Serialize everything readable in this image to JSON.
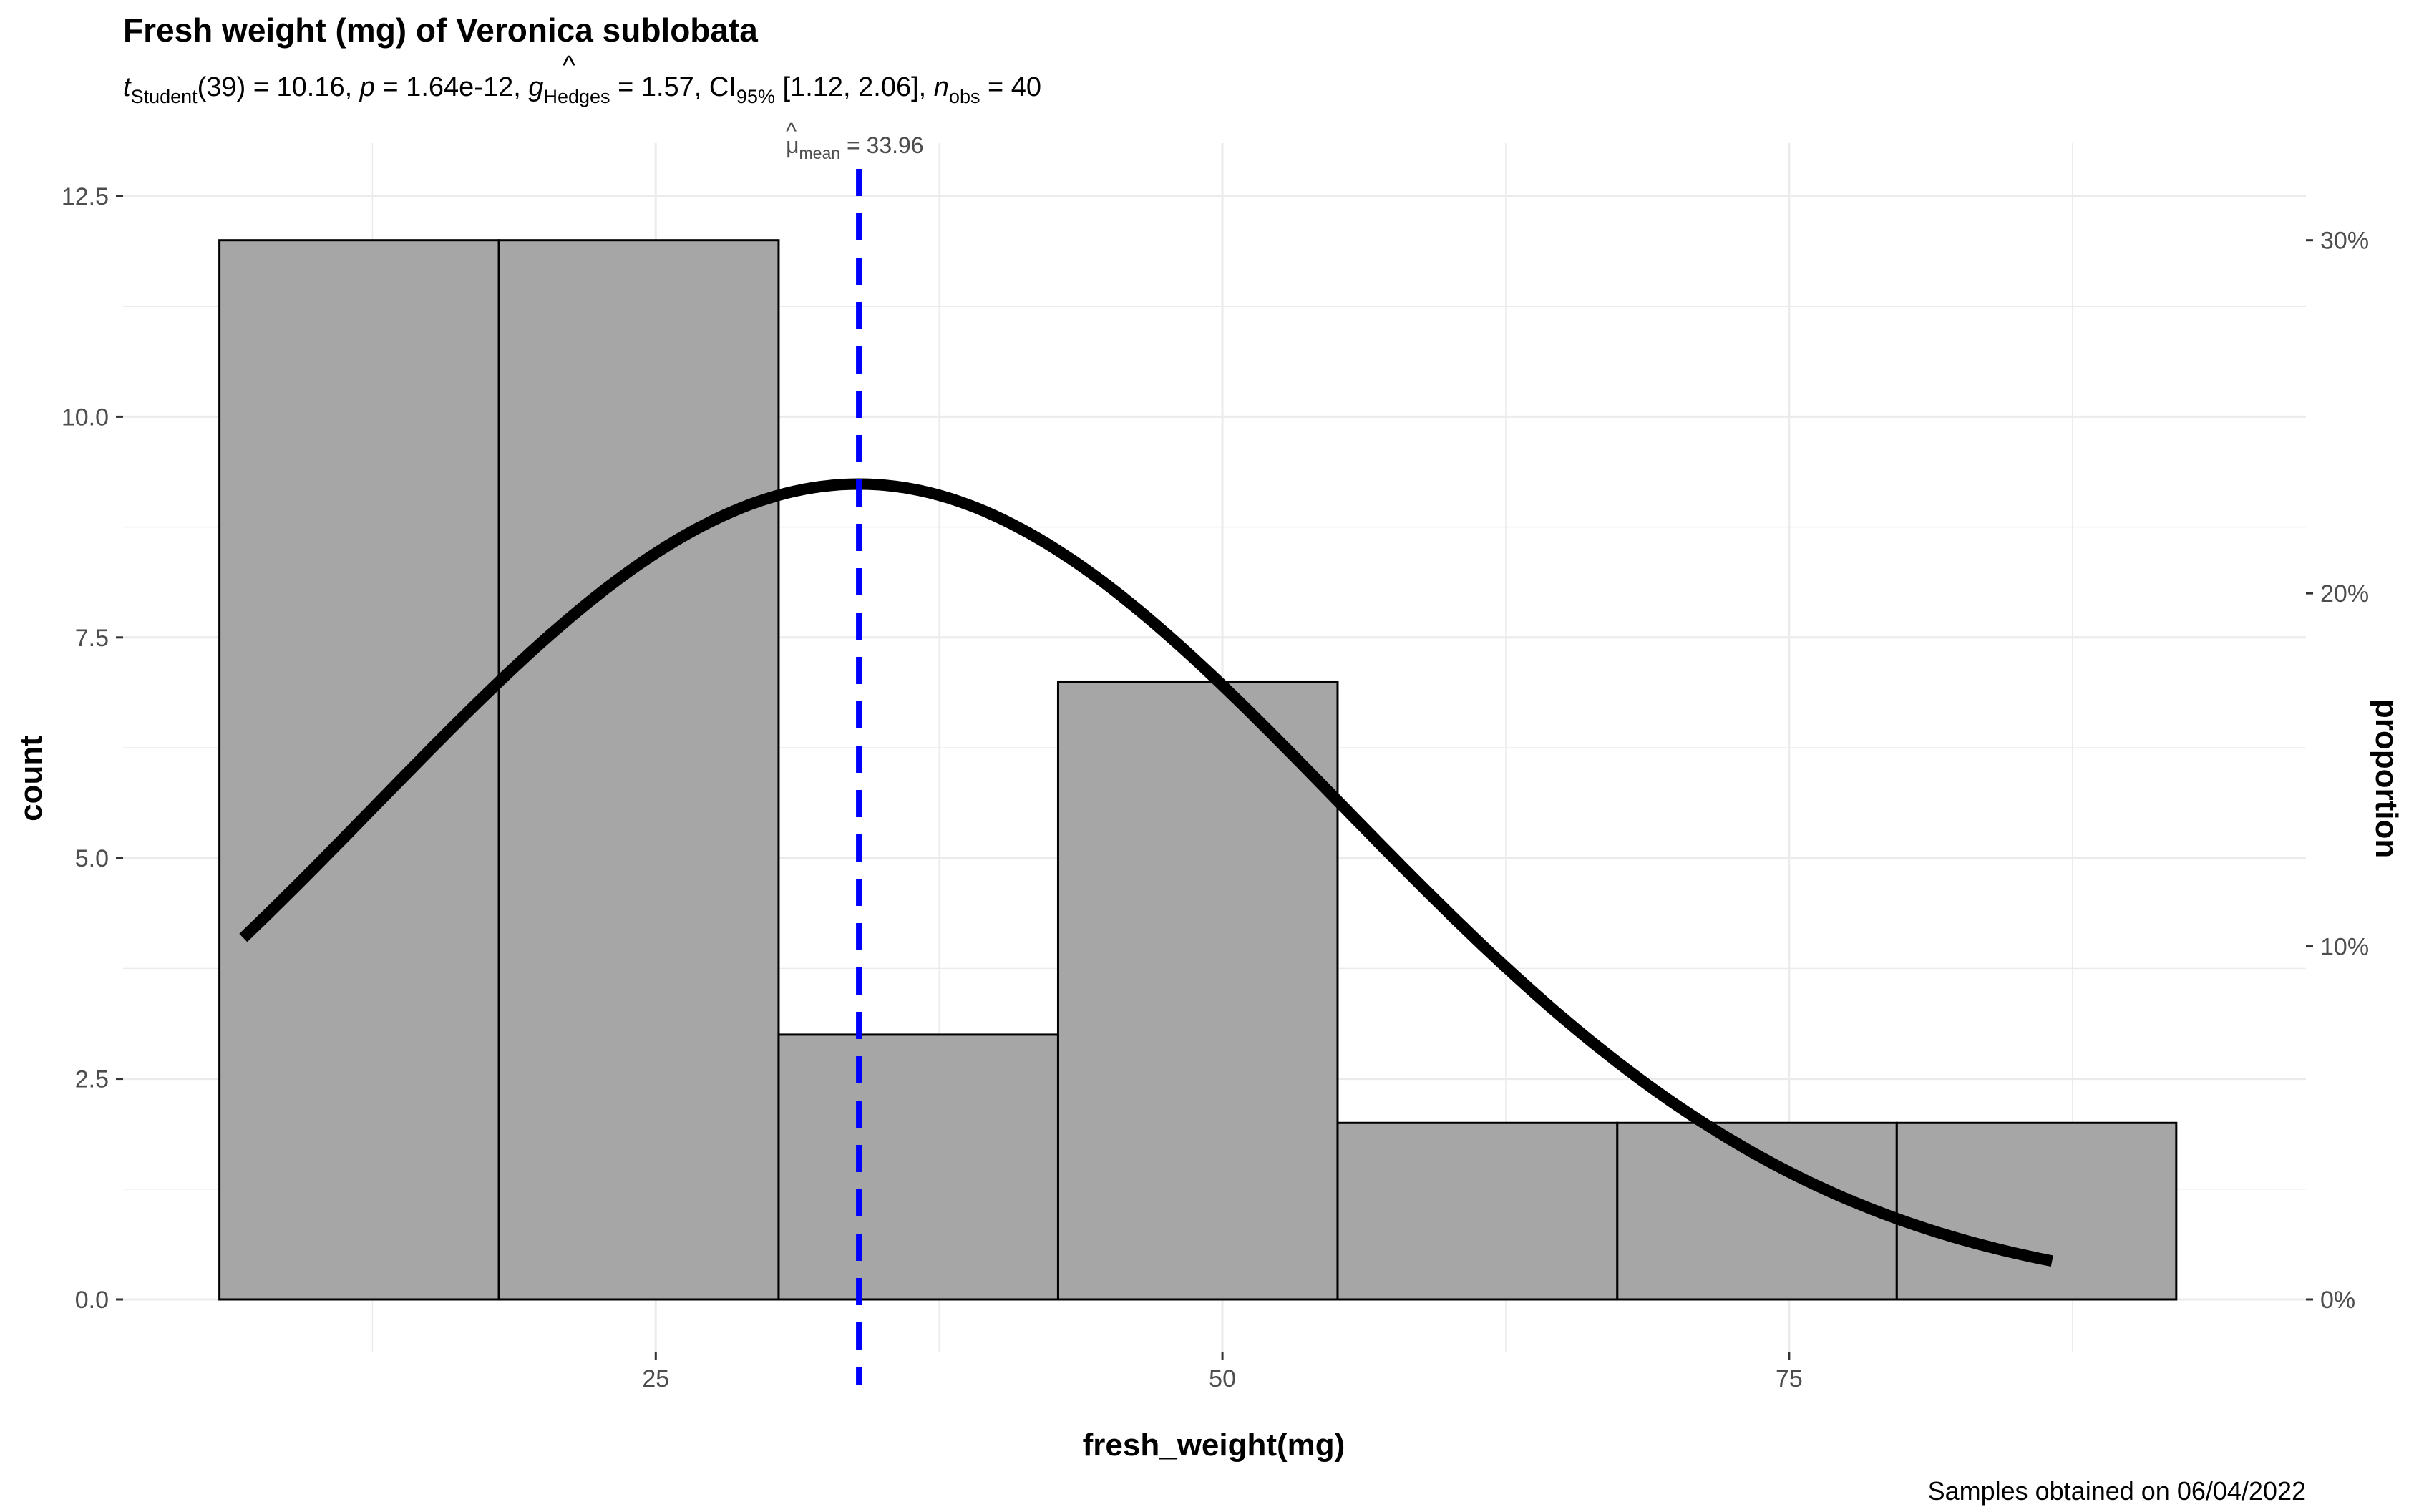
{
  "chart_data": {
    "type": "bar",
    "title": "Fresh weight (mg) of Veronica sublobata",
    "subtitle": {
      "t_label": "t",
      "t_sub": "Student",
      "t_df_text": "(39) = 10.16, ",
      "p_label": "p",
      "p_text": " = 1.64e-12, ",
      "g_label": "g",
      "g_hat": "^",
      "g_sub": "Hedges",
      "g_text": " = 1.57, CI",
      "ci_sub": "95%",
      "ci_text": " [1.12, 2.06], ",
      "n_label": "n",
      "n_sub": "obs",
      "n_text": " = 40"
    },
    "xlabel": "fresh_weight(mg)",
    "ylabel": "count",
    "y2label": "proportion",
    "caption": "Samples obtained on 06/04/2022",
    "xlim": [
      1.5,
      97.8
    ],
    "ylim": [
      -0.6,
      13.1
    ],
    "x_ticks": [
      25,
      50,
      75
    ],
    "x_tick_labels": [
      "25",
      "50",
      "75"
    ],
    "y_ticks": [
      0,
      2.5,
      5,
      7.5,
      10,
      12.5
    ],
    "y_tick_labels": [
      "0.0",
      "2.5",
      "5.0",
      "7.5",
      "10.0",
      "12.5"
    ],
    "y2_ticks": [
      0,
      0.1,
      0.2,
      0.3
    ],
    "y2_tick_labels": [
      "0%",
      "10%",
      "20%",
      "30%"
    ],
    "grid": true,
    "bins": [
      {
        "x0": 5.75,
        "x1": 18.08,
        "count": 12
      },
      {
        "x0": 18.08,
        "x1": 30.42,
        "count": 12
      },
      {
        "x0": 30.42,
        "x1": 42.75,
        "count": 3
      },
      {
        "x0": 42.75,
        "x1": 55.08,
        "count": 7
      },
      {
        "x0": 55.08,
        "x1": 67.42,
        "count": 2
      },
      {
        "x0": 67.42,
        "x1": 79.75,
        "count": 2
      },
      {
        "x0": 79.75,
        "x1": 92.08,
        "count": 2
      }
    ],
    "normal_curve": {
      "mean": 33.96,
      "sd": 21.3,
      "n": 40,
      "binwidth": 12.33,
      "x_from": 6.8,
      "x_to": 86.6
    },
    "mean_line": {
      "value": 33.96,
      "label_mu": "μ",
      "label_sub": "mean",
      "label_value": " = 33.96"
    },
    "colors": {
      "bar_fill": "#a6a6a6",
      "bar_stroke": "#000000",
      "curve": "#000000",
      "mean_line": "#0000ff",
      "grid": "#ebebeb",
      "tick_text": "#4d4d4d"
    }
  }
}
